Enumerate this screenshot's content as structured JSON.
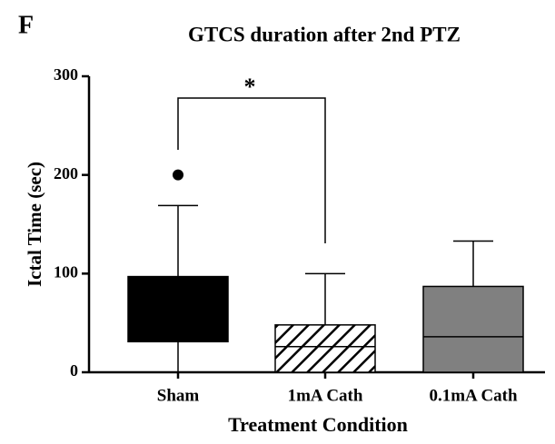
{
  "chart_data": {
    "type": "box",
    "panel_label": "F",
    "title": "GTCS duration after 2nd PTZ",
    "x_label": "Treatment Condition",
    "y_label": "Ictal Time (sec)",
    "categories": [
      "Sham",
      "1mA Cath",
      "0.1mA Cath"
    ],
    "whisker_low": [
      0,
      0,
      0
    ],
    "q1": [
      31,
      0,
      0
    ],
    "median": [
      null,
      26,
      36
    ],
    "q3": [
      97,
      48,
      87
    ],
    "whisker_high": [
      169,
      100,
      133
    ],
    "outliers": [
      [
        200
      ],
      [],
      []
    ],
    "colors": [
      "#000000",
      "#ffffff",
      "#808080"
    ],
    "hatch": [
      false,
      true,
      false
    ],
    "ylim": [
      0,
      300
    ],
    "yticks": [
      0,
      100,
      200,
      300
    ],
    "annotation": "*"
  }
}
